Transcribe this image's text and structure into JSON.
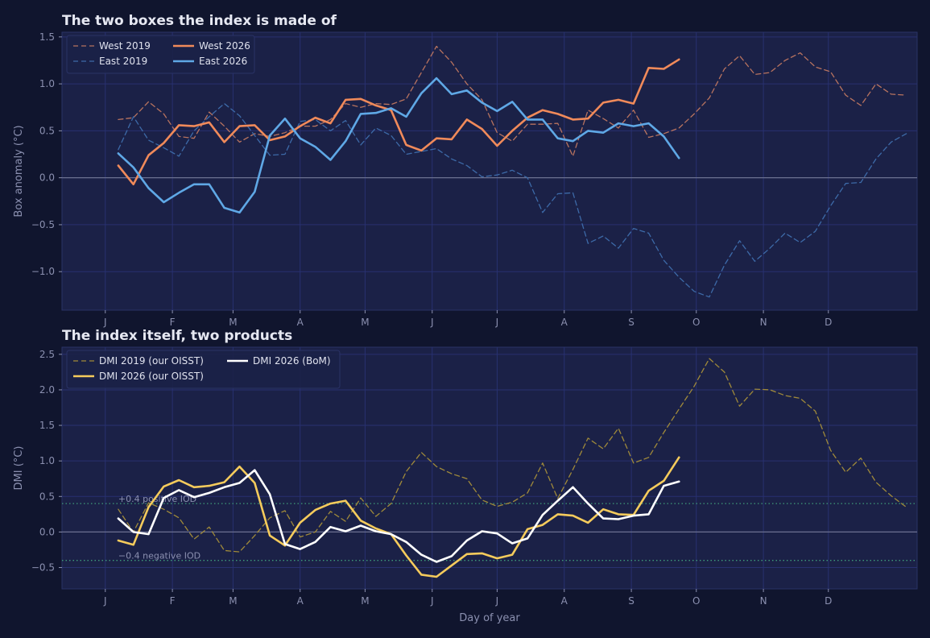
{
  "colors": {
    "background": "#10152e",
    "panel": "#1b2147",
    "panel_border": "#2a3266",
    "grid": "#283170",
    "zero_line": "#6b7090",
    "text": "#8b90b0",
    "title": "#e6e8f2",
    "legend_text": "#e0e2ee",
    "threshold": "#3f9a7a"
  },
  "chart_data": [
    {
      "type": "line",
      "title": "The two boxes the index is made of",
      "xlabel": "",
      "ylabel": "Box anomaly (°C)",
      "xlim": [
        -20,
        375
      ],
      "ylim": [
        -1.41,
        1.55
      ],
      "yticks": [
        -1.0,
        -0.5,
        0.0,
        0.5,
        1.0,
        1.5
      ],
      "ytick_labels": [
        "−1.0",
        "−0.5",
        "0.0",
        "0.5",
        "1.0",
        "1.5"
      ],
      "xticks": [
        0,
        31,
        59,
        90,
        120,
        151,
        181,
        212,
        243,
        273,
        304,
        334
      ],
      "xtick_labels": [
        "J",
        "F",
        "M",
        "A",
        "M",
        "J",
        "J",
        "A",
        "S",
        "O",
        "N",
        "D"
      ],
      "grid": true,
      "zero_line": 0,
      "legend": {
        "position": "top-left",
        "columns": 2
      },
      "x_step": 7,
      "x_start": 6,
      "series": [
        {
          "name": "West 2019",
          "color": "#b8735f",
          "style": "dashed",
          "width": 1.3,
          "values": [
            0.62,
            0.64,
            0.81,
            0.68,
            0.44,
            0.42,
            0.7,
            0.55,
            0.38,
            0.47,
            0.44,
            0.48,
            0.55,
            0.55,
            0.62,
            0.79,
            0.75,
            0.79,
            0.78,
            0.84,
            1.12,
            1.4,
            1.23,
            1.0,
            0.83,
            0.48,
            0.39,
            0.57,
            0.57,
            0.58,
            0.23,
            0.72,
            0.63,
            0.53,
            0.72,
            0.43,
            0.47,
            0.53,
            0.68,
            0.85,
            1.16,
            1.3,
            1.1,
            1.12,
            1.25,
            1.33,
            1.18,
            1.13,
            0.88,
            0.77,
            1.0,
            0.89,
            0.88
          ]
        },
        {
          "name": "East 2019",
          "color": "#3d6aa8",
          "style": "dashed",
          "width": 1.3,
          "values": [
            0.3,
            0.65,
            0.4,
            0.32,
            0.23,
            0.5,
            0.65,
            0.79,
            0.66,
            0.45,
            0.24,
            0.25,
            0.6,
            0.62,
            0.5,
            0.61,
            0.35,
            0.53,
            0.45,
            0.25,
            0.28,
            0.31,
            0.2,
            0.13,
            0.01,
            0.03,
            0.08,
            0.0,
            -0.37,
            -0.17,
            -0.16,
            -0.7,
            -0.62,
            -0.75,
            -0.54,
            -0.59,
            -0.88,
            -1.06,
            -1.21,
            -1.27,
            -0.93,
            -0.67,
            -0.89,
            -0.75,
            -0.59,
            -0.69,
            -0.57,
            -0.3,
            -0.06,
            -0.05,
            0.2,
            0.38,
            0.47
          ]
        },
        {
          "name": "West 2026",
          "color": "#f08a5a",
          "style": "solid",
          "width": 2.6,
          "values": [
            0.13,
            -0.07,
            0.24,
            0.37,
            0.56,
            0.55,
            0.59,
            0.38,
            0.55,
            0.56,
            0.4,
            0.44,
            0.55,
            0.64,
            0.58,
            0.83,
            0.84,
            0.77,
            0.72,
            0.35,
            0.29,
            0.42,
            0.41,
            0.62,
            0.52,
            0.34,
            0.5,
            0.64,
            0.72,
            0.68,
            0.62,
            0.63,
            0.8,
            0.83,
            0.79,
            1.17,
            1.16,
            1.26
          ]
        },
        {
          "name": "East 2026",
          "color": "#5fa8e6",
          "style": "solid",
          "width": 2.6,
          "values": [
            0.26,
            0.11,
            -0.11,
            -0.26,
            -0.16,
            -0.07,
            -0.07,
            -0.32,
            -0.37,
            -0.15,
            0.45,
            0.63,
            0.42,
            0.33,
            0.19,
            0.39,
            0.68,
            0.69,
            0.74,
            0.65,
            0.9,
            1.06,
            0.89,
            0.93,
            0.8,
            0.71,
            0.81,
            0.62,
            0.62,
            0.42,
            0.39,
            0.5,
            0.48,
            0.58,
            0.55,
            0.58,
            0.44,
            0.21
          ]
        }
      ]
    },
    {
      "type": "line",
      "title": "The index itself, two products",
      "xlabel": "Day of year",
      "ylabel": "DMI (°C)",
      "xlim": [
        -20,
        375
      ],
      "ylim": [
        -0.8,
        2.6
      ],
      "yticks": [
        -0.5,
        0.0,
        0.5,
        1.0,
        1.5,
        2.0,
        2.5
      ],
      "ytick_labels": [
        "−0.5",
        "0.0",
        "0.5",
        "1.0",
        "1.5",
        "2.0",
        "2.5"
      ],
      "xticks": [
        0,
        31,
        59,
        90,
        120,
        151,
        181,
        212,
        243,
        273,
        304,
        334
      ],
      "xtick_labels": [
        "J",
        "F",
        "M",
        "A",
        "M",
        "J",
        "J",
        "A",
        "S",
        "O",
        "N",
        "D"
      ],
      "grid": true,
      "zero_line": 0,
      "legend": {
        "position": "top-left",
        "columns": 2
      },
      "thresholds": [
        {
          "y": 0.4,
          "label": "+0.4  positive IOD"
        },
        {
          "y": -0.4,
          "label": "−0.4  negative IOD"
        }
      ],
      "x_step": 7,
      "x_start": 6,
      "series": [
        {
          "name": "DMI 2019 (our OISST)",
          "color": "#a08a3a",
          "style": "dashed",
          "width": 1.3,
          "values": [
            0.32,
            0.0,
            0.41,
            0.32,
            0.2,
            -0.1,
            0.07,
            -0.26,
            -0.28,
            -0.05,
            0.2,
            0.3,
            -0.07,
            0.0,
            0.29,
            0.15,
            0.48,
            0.22,
            0.4,
            0.85,
            1.12,
            0.92,
            0.82,
            0.75,
            0.45,
            0.36,
            0.42,
            0.55,
            0.97,
            0.47,
            0.88,
            1.32,
            1.17,
            1.46,
            0.97,
            1.05,
            1.4,
            1.73,
            2.05,
            2.44,
            2.25,
            1.77,
            2.01,
            2.0,
            1.92,
            1.88,
            1.7,
            1.15,
            0.84,
            1.04,
            0.7,
            0.51,
            0.35
          ]
        },
        {
          "name": "DMI 2026 (our OISST)",
          "color": "#f5cb5c",
          "style": "solid",
          "width": 2.6,
          "values": [
            -0.12,
            -0.18,
            0.35,
            0.64,
            0.73,
            0.63,
            0.65,
            0.7,
            0.92,
            0.69,
            -0.05,
            -0.19,
            0.13,
            0.31,
            0.4,
            0.44,
            0.16,
            0.05,
            -0.03,
            -0.33,
            -0.6,
            -0.63,
            -0.47,
            -0.31,
            -0.3,
            -0.37,
            -0.32,
            0.04,
            0.1,
            0.25,
            0.23,
            0.13,
            0.32,
            0.25,
            0.24,
            0.58,
            0.72,
            1.05
          ]
        },
        {
          "name": "DMI 2026 (BoM)",
          "color": "#ffffff",
          "style": "solid",
          "width": 2.6,
          "values": [
            0.19,
            0.0,
            -0.03,
            0.48,
            0.59,
            0.49,
            0.55,
            0.63,
            0.69,
            0.87,
            0.53,
            -0.17,
            -0.24,
            -0.14,
            0.07,
            0.01,
            0.09,
            0.01,
            -0.03,
            -0.14,
            -0.32,
            -0.42,
            -0.34,
            -0.12,
            0.01,
            -0.02,
            -0.16,
            -0.09,
            0.24,
            0.44,
            0.63,
            0.4,
            0.19,
            0.18,
            0.23,
            0.25,
            0.65,
            0.71
          ]
        }
      ]
    }
  ]
}
